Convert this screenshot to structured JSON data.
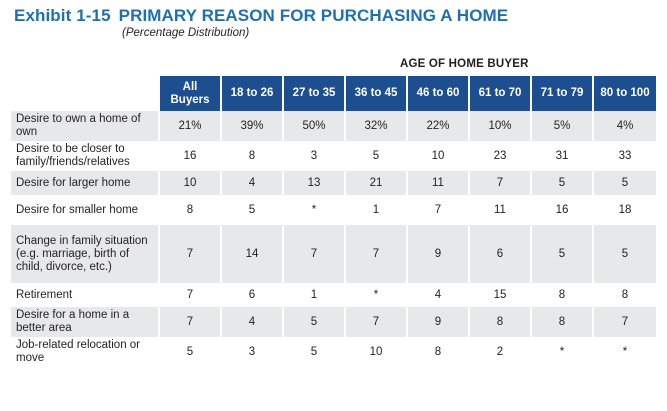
{
  "exhibit": {
    "number": "Exhibit 1-15",
    "title": "PRIMARY REASON FOR PURCHASING A HOME",
    "subtitle": "(Percentage Distribution)"
  },
  "group_label": "AGE OF HOME BUYER",
  "columns": [
    {
      "line1": "All",
      "line2": "Buyers"
    },
    {
      "line1": "18 to 26",
      "line2": ""
    },
    {
      "line1": "27 to 35",
      "line2": ""
    },
    {
      "line1": "36 to 45",
      "line2": ""
    },
    {
      "line1": "46 to 60",
      "line2": ""
    },
    {
      "line1": "61 to 70",
      "line2": ""
    },
    {
      "line1": "71 to 79",
      "line2": ""
    },
    {
      "line1": "80 to 100",
      "line2": ""
    }
  ],
  "rows": [
    {
      "label": "Desire to own a home of own",
      "values": [
        "21%",
        "39%",
        "50%",
        "32%",
        "22%",
        "10%",
        "5%",
        "4%"
      ]
    },
    {
      "label": "Desire to be closer to family/friends/relatives",
      "values": [
        "16",
        "8",
        "3",
        "5",
        "10",
        "23",
        "31",
        "33"
      ]
    },
    {
      "label": "Desire for larger home",
      "values": [
        "10",
        "4",
        "13",
        "21",
        "11",
        "7",
        "5",
        "5"
      ]
    },
    {
      "label": "Desire for smaller home",
      "values": [
        "8",
        "5",
        "*",
        "1",
        "7",
        "11",
        "16",
        "18"
      ]
    },
    {
      "label": "Change in family situation (e.g. marriage, birth of child, divorce, etc.)",
      "values": [
        "7",
        "14",
        "7",
        "7",
        "9",
        "6",
        "5",
        "5"
      ]
    },
    {
      "label": "Retirement",
      "values": [
        "7",
        "6",
        "1",
        "*",
        "4",
        "15",
        "8",
        "8"
      ]
    },
    {
      "label": "Desire for a home in a better area",
      "values": [
        "7",
        "4",
        "5",
        "7",
        "9",
        "8",
        "8",
        "7"
      ]
    },
    {
      "label": "Job-related relocation or move",
      "values": [
        "5",
        "3",
        "5",
        "10",
        "8",
        "2",
        "*",
        "*"
      ]
    }
  ],
  "colors": {
    "title": "#1f6fb4",
    "header_bg": "#1d4e8f",
    "row_shade": "#e7e8e9"
  }
}
